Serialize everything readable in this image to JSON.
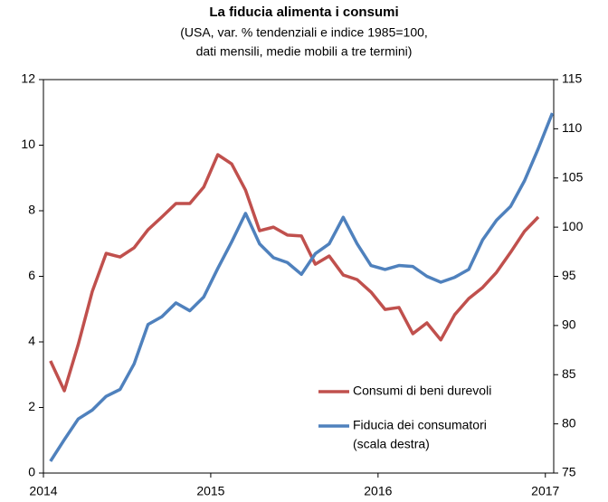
{
  "chart_data": {
    "type": "line",
    "title": "La fiducia alimenta i consumi",
    "subtitle": [
      "(USA, var. % tendenziali e indice 1985=100,",
      "dati mensili, medie mobili a tre termini)"
    ],
    "x": [
      2014.042,
      2014.125,
      2014.208,
      2014.292,
      2014.375,
      2014.458,
      2014.542,
      2014.625,
      2014.708,
      2014.792,
      2014.875,
      2014.958,
      2015.042,
      2015.125,
      2015.208,
      2015.292,
      2015.375,
      2015.458,
      2015.542,
      2015.625,
      2015.708,
      2015.792,
      2015.875,
      2015.958,
      2016.042,
      2016.125,
      2016.208,
      2016.292,
      2016.375,
      2016.458,
      2016.542,
      2016.625,
      2016.708,
      2016.792,
      2016.875,
      2016.958,
      2017.042
    ],
    "xlim": [
      2014,
      2017.05
    ],
    "xticks": [
      2014,
      2015,
      2016,
      2017
    ],
    "ylim": [
      0,
      12
    ],
    "yticks": [
      0,
      2,
      4,
      6,
      8,
      10,
      12
    ],
    "y2lim": [
      75,
      115
    ],
    "y2ticks": [
      75,
      80,
      85,
      90,
      95,
      100,
      105,
      110,
      115
    ],
    "series": [
      {
        "name": "Consumi di beni durevoli",
        "color": "#c0504d",
        "values": [
          3.42,
          2.51,
          3.92,
          5.54,
          6.7,
          6.59,
          6.87,
          7.42,
          7.81,
          8.22,
          8.22,
          8.72,
          9.71,
          9.43,
          8.63,
          7.39,
          7.5,
          7.26,
          7.23,
          6.37,
          6.62,
          6.04,
          5.9,
          5.52,
          4.99,
          5.05,
          4.25,
          4.58,
          4.06,
          4.83,
          5.32,
          5.66,
          6.12,
          6.73,
          7.37,
          7.81,
          null
        ]
      },
      {
        "name": "Fiducia dei consumatori",
        "note": "(scala destra)",
        "color": "#4f81bd",
        "axis": "y2",
        "values": [
          76.2,
          78.4,
          80.5,
          81.4,
          82.8,
          83.5,
          86.1,
          90.1,
          90.9,
          92.3,
          91.5,
          92.9,
          95.8,
          98.5,
          101.4,
          98.3,
          96.9,
          96.4,
          95.2,
          97.3,
          98.3,
          101.0,
          98.3,
          96.1,
          95.7,
          96.1,
          96.0,
          95.0,
          94.4,
          94.9,
          95.7,
          98.7,
          100.7,
          102.1,
          104.7,
          108.0,
          111.6
        ]
      }
    ]
  }
}
